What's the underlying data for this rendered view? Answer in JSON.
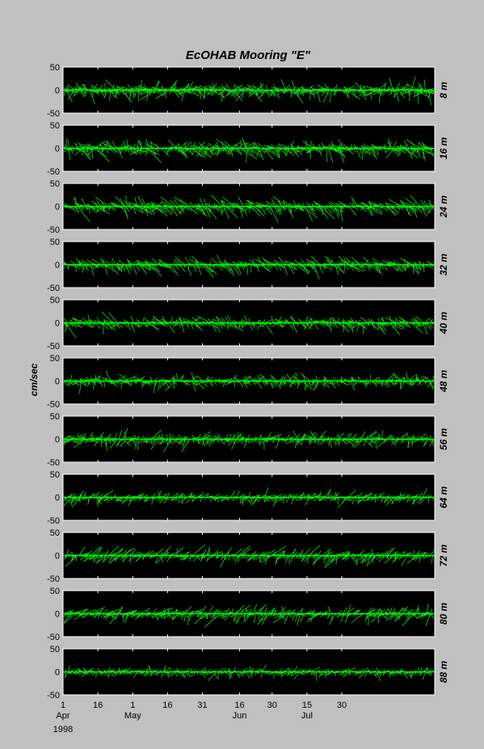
{
  "chart_data": {
    "type": "stick-vector",
    "title": "EcOHAB Mooring \"E\"",
    "ylabel": "cm/sec",
    "ylim": [
      -50,
      50
    ],
    "yticks": [
      -50,
      0,
      50
    ],
    "ytick_labels": [
      "-50",
      "0",
      "50"
    ],
    "x_range_days": [
      0,
      160
    ],
    "grid": false,
    "color": "#00ff00",
    "x_ticks": [
      {
        "day": 0,
        "day_label": "1",
        "month_label": "Apr",
        "year_label": "1998"
      },
      {
        "day": 15,
        "day_label": "16",
        "month_label": "",
        "year_label": ""
      },
      {
        "day": 30,
        "day_label": "1",
        "month_label": "May",
        "year_label": ""
      },
      {
        "day": 45,
        "day_label": "16",
        "month_label": "",
        "year_label": ""
      },
      {
        "day": 60,
        "day_label": "31",
        "month_label": "",
        "year_label": ""
      },
      {
        "day": 76,
        "day_label": "16",
        "month_label": "Jun",
        "year_label": ""
      },
      {
        "day": 90,
        "day_label": "30",
        "month_label": "",
        "year_label": ""
      },
      {
        "day": 105,
        "day_label": "15",
        "month_label": "Jul",
        "year_label": ""
      },
      {
        "day": 120,
        "day_label": "30",
        "month_label": "",
        "year_label": ""
      }
    ],
    "panels": [
      {
        "depth": "8 m",
        "amplitude": 38
      },
      {
        "depth": "16 m",
        "amplitude": 36
      },
      {
        "depth": "24 m",
        "amplitude": 34
      },
      {
        "depth": "32 m",
        "amplitude": 30
      },
      {
        "depth": "40 m",
        "amplitude": 30
      },
      {
        "depth": "48 m",
        "amplitude": 28
      },
      {
        "depth": "56 m",
        "amplitude": 28
      },
      {
        "depth": "64 m",
        "amplitude": 26
      },
      {
        "depth": "72 m",
        "amplitude": 28
      },
      {
        "depth": "80 m",
        "amplitude": 30
      },
      {
        "depth": "88 m",
        "amplitude": 20
      }
    ]
  }
}
